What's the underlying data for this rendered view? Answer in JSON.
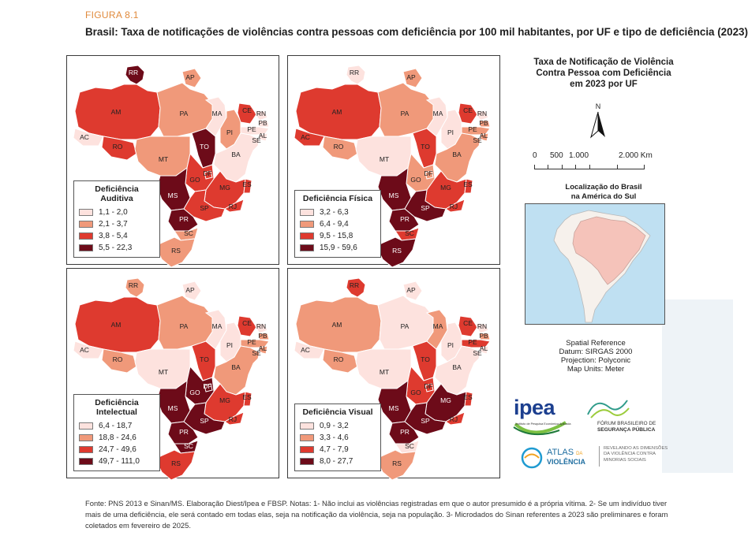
{
  "figure": {
    "label": "FIGURA 8.1",
    "title": "Brasil: Taxa de notificações de violências contra pessoas com deficiência por 100 mil habitantes, por UF e tipo de deficiência (2023)"
  },
  "colors": {
    "c1": "#fde2de",
    "c2": "#f0997a",
    "c3": "#de3a2f",
    "c4": "#6d0b19",
    "border": "#ffffff",
    "accent": "#e08a3c"
  },
  "panels": [
    {
      "key": "auditiva",
      "legend_title": "Deficiência Auditiva",
      "legend": [
        "1,1 - 2,0",
        "2,1 - 3,7",
        "3,8 - 5,4",
        "5,5 - 22,3"
      ],
      "states": {
        "RR": 4,
        "AP": 2,
        "AM": 3,
        "PA": 2,
        "AC": 1,
        "RO": 3,
        "MT": 2,
        "TO": 4,
        "MA": 1,
        "PI": 2,
        "CE": 3,
        "RN": 1,
        "PB": 1,
        "PE": 1,
        "AL": 1,
        "SE": 1,
        "BA": 1,
        "GO": 3,
        "DF": 3,
        "MG": 3,
        "ES": 3,
        "RJ": 3,
        "MS": 4,
        "SP": 3,
        "PR": 4,
        "SC": 2,
        "RS": 2
      }
    },
    {
      "key": "fisica",
      "legend_title": "Deficiência Física",
      "legend": [
        "3,2 - 6,3",
        "6,4 - 9,4",
        "9,5 - 15,8",
        "15,9 - 59,6"
      ],
      "states": {
        "RR": 1,
        "AP": 2,
        "AM": 3,
        "PA": 2,
        "AC": 3,
        "RO": 2,
        "MT": 1,
        "TO": 3,
        "MA": 1,
        "PI": 1,
        "CE": 3,
        "RN": 1,
        "PB": 2,
        "PE": 2,
        "AL": 2,
        "SE": 1,
        "BA": 2,
        "GO": 2,
        "DF": 2,
        "MG": 3,
        "ES": 3,
        "RJ": 3,
        "MS": 4,
        "SP": 4,
        "PR": 4,
        "SC": 3,
        "RS": 4
      }
    },
    {
      "key": "intelectual",
      "legend_title": "Deficiência Intelectual",
      "legend": [
        "6,4 - 18,7",
        "18,8 - 24,6",
        "24,7 - 49,6",
        "49,7 - 111,0"
      ],
      "states": {
        "RR": 2,
        "AP": 1,
        "AM": 3,
        "PA": 2,
        "AC": 1,
        "RO": 2,
        "MT": 1,
        "TO": 3,
        "MA": 1,
        "PI": 1,
        "CE": 3,
        "RN": 1,
        "PB": 2,
        "PE": 2,
        "AL": 2,
        "SE": 1,
        "BA": 2,
        "GO": 4,
        "DF": 4,
        "MG": 3,
        "ES": 3,
        "RJ": 3,
        "MS": 4,
        "SP": 4,
        "PR": 4,
        "SC": 4,
        "RS": 3
      }
    },
    {
      "key": "visual",
      "legend_title": "Deficiência Visual",
      "legend": [
        "0,9 - 3,2",
        "3,3 - 4,6",
        "4,7 - 7,9",
        "8,0 - 27,7"
      ],
      "states": {
        "RR": 3,
        "AP": 1,
        "AM": 2,
        "PA": 1,
        "AC": 1,
        "RO": 2,
        "MT": 1,
        "TO": 3,
        "MA": 2,
        "PI": 1,
        "CE": 3,
        "RN": 1,
        "PB": 2,
        "PE": 3,
        "AL": 1,
        "SE": 1,
        "BA": 1,
        "GO": 3,
        "DF": 3,
        "MG": 4,
        "ES": 3,
        "RJ": 3,
        "MS": 4,
        "SP": 4,
        "PR": 4,
        "SC": 1,
        "RS": 2
      }
    }
  ],
  "side": {
    "title_lines": [
      "Taxa de Notificação de Violência",
      "Contra Pessoa com Deficiência",
      "em 2023 por UF"
    ],
    "north_label": "N",
    "scale": [
      "0",
      "500",
      "1.000",
      "2.000 Km"
    ],
    "location_title_lines": [
      "Localização do Brasil",
      "na América do Sul"
    ],
    "reference_lines": [
      "Spatial Reference",
      "Datum: SIRGAS 2000",
      "Projection: Polyconic",
      "Map Units: Meter"
    ]
  },
  "logos": {
    "ipea": "ipea",
    "ipea_sub": "Instituto de Pesquisa Econômica Aplicada",
    "fbsp_line1": "FÓRUM BRASILEIRO DE",
    "fbsp_line2": "SEGURANÇA PÚBLICA",
    "atlas_line1": "ATLAS",
    "atlas_da": "DA",
    "atlas_line2": "VIOLÊNCIA",
    "atlas_tag_lines": [
      "REVELANDO AS DIMENSÕES",
      "DA VIOLÊNCIA CONTRA",
      "MINORIAS SOCIAIS"
    ]
  },
  "footer": "Fonte: PNS 2013 e Sinan/MS. Elaboração Diest/Ipea e FBSP. Notas: 1- Não inclui as violências registradas em que o autor presumido é a própria vítima. 2- Se um indivíduo tiver mais de uma deficiência, ele será contado em todas elas, seja na notificação da violência, seja na população. 3- Microdados do Sinan referentes a 2023 são preliminares e foram coletados em fevereiro de 2025."
}
